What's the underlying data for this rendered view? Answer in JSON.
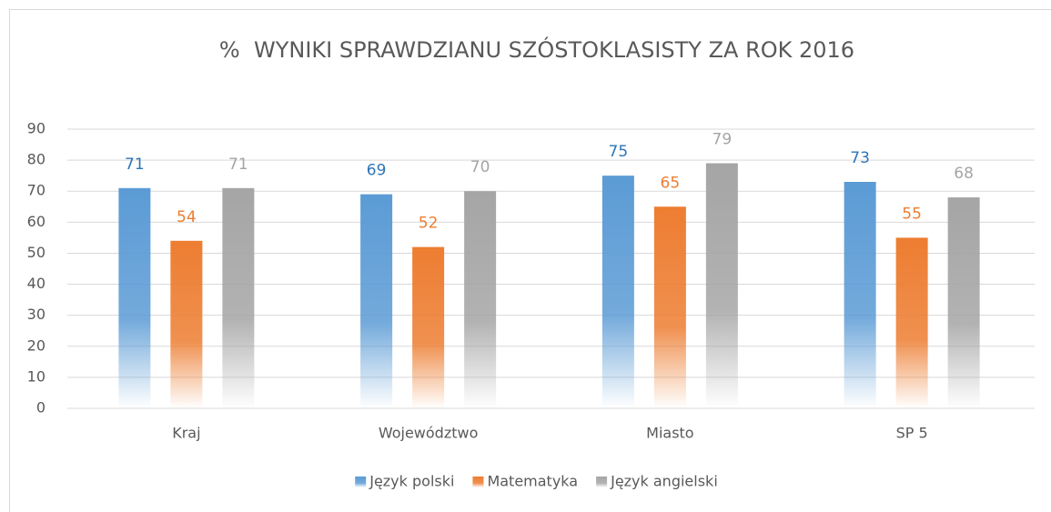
{
  "chart_data": {
    "type": "bar",
    "title": "%  WYNIKI SPRAWDZIANU SZÓSTOKLASISTY ZA ROK 2016",
    "categories": [
      "Kraj",
      "Województwo",
      "Miasto",
      "SP 5"
    ],
    "series": [
      {
        "name": "Język polski",
        "color": "#5b9bd5",
        "values": [
          71,
          69,
          75,
          73
        ]
      },
      {
        "name": "Matematyka",
        "color": "#ed7d31",
        "values": [
          54,
          52,
          65,
          55
        ]
      },
      {
        "name": "Język angielski",
        "color": "#a5a5a5",
        "values": [
          71,
          70,
          79,
          68
        ]
      }
    ],
    "ylim": [
      0,
      90
    ],
    "yticks": [
      0,
      10,
      20,
      30,
      40,
      50,
      60,
      70,
      80,
      90
    ],
    "grid": true,
    "legend": "bottom"
  }
}
